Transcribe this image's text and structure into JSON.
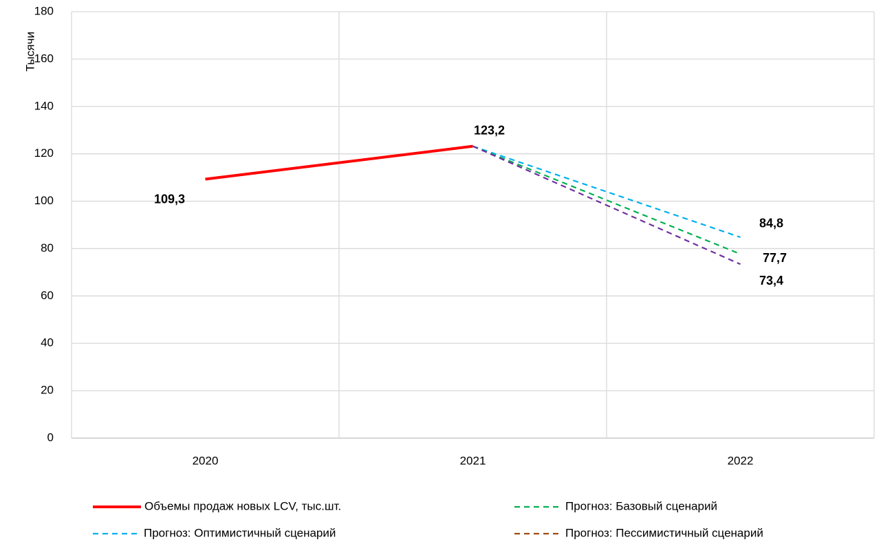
{
  "chart_data": {
    "type": "line",
    "y_label": "Тысячи",
    "categories": [
      "2020",
      "2021",
      "2022"
    ],
    "series": [
      {
        "name": "Объемы продаж новых LCV, тыс.шт.",
        "color": "#ff0000",
        "style": "solid",
        "values": [
          109.3,
          123.2,
          null
        ],
        "value_labels": [
          "109,3",
          "123,2",
          null
        ]
      },
      {
        "name": "Прогноз: Базовый сценарий",
        "color": "#00b050",
        "style": "dashed",
        "values": [
          null,
          123.2,
          77.7
        ],
        "value_labels": [
          null,
          null,
          "77,7"
        ]
      },
      {
        "name": "Прогноз: Оптимистичный сценарий",
        "color": "#00b0f0",
        "style": "dashed",
        "values": [
          null,
          123.2,
          84.8
        ],
        "value_labels": [
          null,
          null,
          "84,8"
        ]
      },
      {
        "name": "Прогноз: Пессимистичный сценарий",
        "color": "#7030a0",
        "legend_color": "#9c4a12",
        "style": "dashed",
        "values": [
          null,
          123.2,
          73.4
        ],
        "value_labels": [
          null,
          null,
          "73,4"
        ]
      }
    ],
    "ylim": [
      0,
      180
    ],
    "yticks": [
      0,
      20,
      40,
      60,
      80,
      100,
      120,
      140,
      160,
      180
    ],
    "grid": true
  }
}
